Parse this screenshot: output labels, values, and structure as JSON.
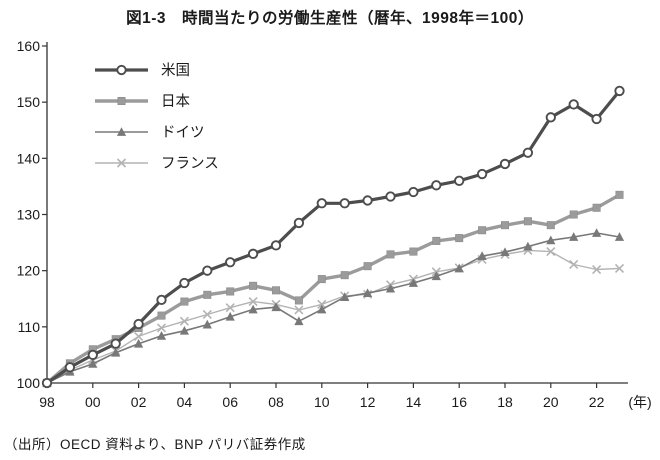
{
  "title": "図1-3　時間当たりの労働生産性（暦年、1998年＝100）",
  "source": "（出所）OECD 資料より、BNP パリバ証券作成",
  "chart_data": {
    "type": "line",
    "title": "図1-3 時間当たりの労働生産性（暦年、1998年＝100）",
    "xlabel": "",
    "ylabel": "",
    "x_unit_label": "(年)",
    "ylim": [
      100,
      160
    ],
    "y_ticks": [
      100,
      110,
      120,
      130,
      140,
      150,
      160
    ],
    "x_range_years": [
      1998,
      2023
    ],
    "x_tick_labels": [
      "98",
      "00",
      "02",
      "04",
      "06",
      "08",
      "10",
      "12",
      "14",
      "16",
      "18",
      "20",
      "22"
    ],
    "grid": false,
    "legend_position": "upper-left-inside",
    "x": [
      1998,
      1999,
      2000,
      2001,
      2002,
      2003,
      2004,
      2005,
      2006,
      2007,
      2008,
      2009,
      2010,
      2011,
      2012,
      2013,
      2014,
      2015,
      2016,
      2017,
      2018,
      2019,
      2020,
      2021,
      2022,
      2023
    ],
    "series": [
      {
        "name": "米国",
        "marker": "open-circle",
        "color": "#4d4d4d",
        "line_width": 3.2,
        "values": [
          100,
          102.8,
          105,
          107,
          110.5,
          114.8,
          117.8,
          120,
          121.5,
          123,
          124.5,
          128.5,
          132,
          132,
          132.5,
          133.2,
          134,
          135.2,
          136,
          137.2,
          139,
          141,
          147.3,
          149.6,
          147,
          152
        ]
      },
      {
        "name": "日本",
        "marker": "filled-square",
        "color": "#9b9b9b",
        "line_width": 3.4,
        "values": [
          100,
          103.5,
          106,
          107.8,
          109.8,
          112,
          114.5,
          115.7,
          116.3,
          117.3,
          116.5,
          114.7,
          118.5,
          119.2,
          120.8,
          122.9,
          123.4,
          125.3,
          125.8,
          127.2,
          128.1,
          128.8,
          128.1,
          130,
          131.2,
          133.5
        ]
      },
      {
        "name": "ドイツ",
        "marker": "filled-triangle",
        "color": "#787878",
        "line_width": 1.6,
        "values": [
          100,
          102,
          103.4,
          105.4,
          107,
          108.4,
          109.3,
          110.4,
          111.8,
          113.1,
          113.5,
          111,
          113.1,
          115.3,
          116,
          116.8,
          117.8,
          119,
          120.4,
          122.6,
          123.3,
          124.3,
          125.4,
          126,
          126.7,
          126
        ]
      },
      {
        "name": "フランス",
        "marker": "x-cross",
        "color": "#b3b3b3",
        "line_width": 1.4,
        "values": [
          100,
          102.3,
          104.1,
          105.7,
          108.3,
          109.8,
          111,
          112.2,
          113.4,
          114.5,
          114,
          113,
          114,
          115.5,
          115.8,
          117.5,
          118.5,
          119.8,
          120.5,
          122,
          122.9,
          123.6,
          123.4,
          121.1,
          120.2,
          120.4
        ]
      }
    ]
  }
}
